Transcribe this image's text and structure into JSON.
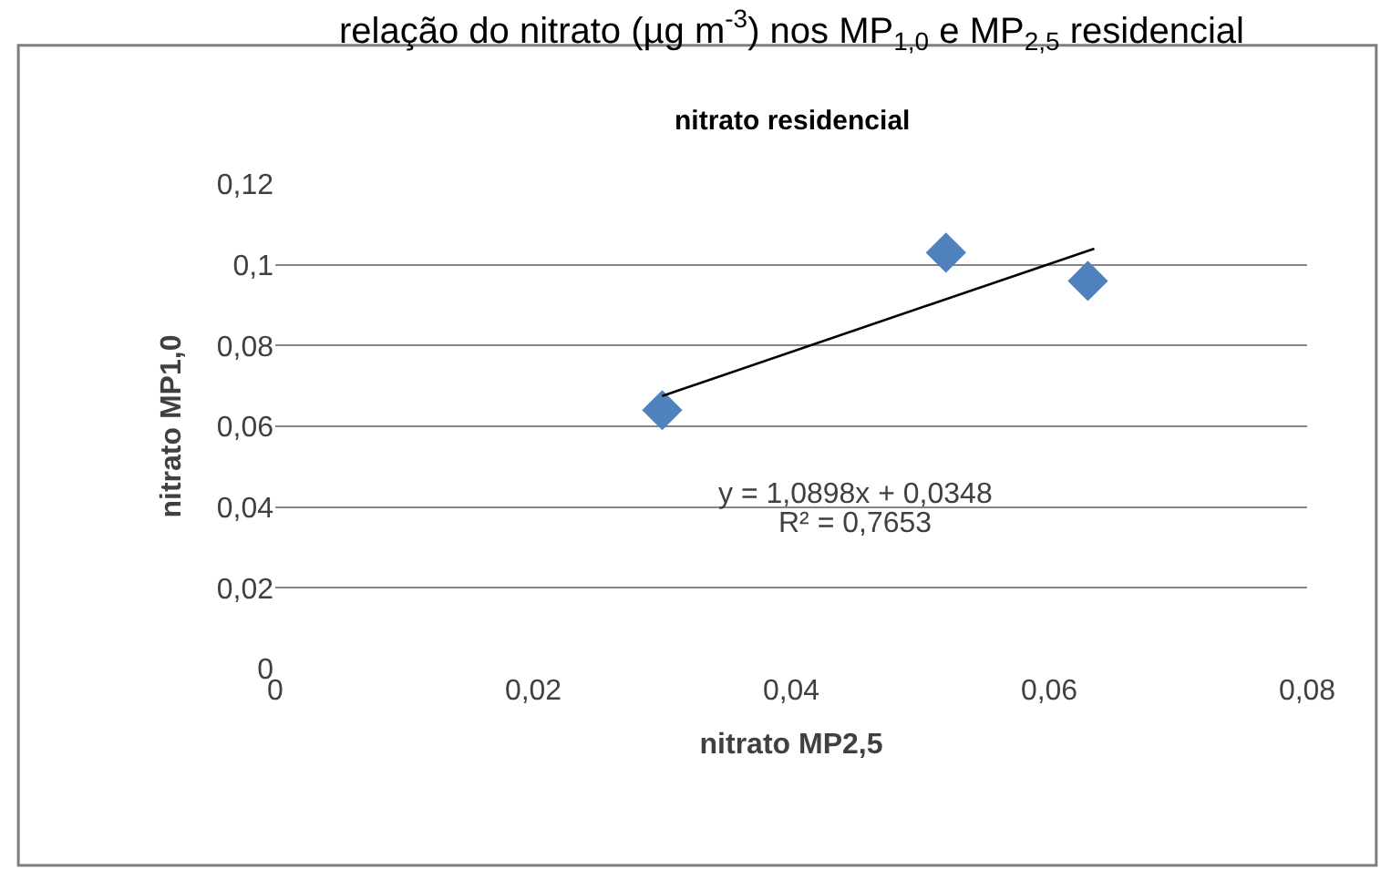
{
  "chart_data": {
    "type": "scatter",
    "title": "nitrato residencial",
    "subtitle": "relação do nitrato (µg m$^{-3}$) nos MP$_{1,0}$ e MP$_{2,5}$ residencial",
    "xlabel": "nitrato MP2,5",
    "ylabel": "nitrato MP1,0",
    "series": [
      {
        "color": "#4f81bd",
        "marker": "diamond",
        "x": [
          0.03,
          0.052,
          0.063
        ],
        "values": [
          0.064,
          0.103,
          0.096
        ]
      },
      {
        "type": "line",
        "color": "#000000",
        "marker": "none",
        "x": [
          0.03,
          0.0635
        ],
        "values": [
          0.0675,
          0.104
        ]
      }
    ],
    "annotations": [
      "y = 1,0898x + 0,0348",
      "R² = 0,7653"
    ],
    "xlim": [
      0,
      0.08
    ],
    "xticks": [
      {
        "value": 0,
        "label": "0"
      },
      {
        "value": 0.02,
        "label": "0,02"
      },
      {
        "value": 0.04,
        "label": "0,04"
      },
      {
        "value": 0.06,
        "label": "0,06"
      },
      {
        "value": 0.08,
        "label": "0,08"
      }
    ],
    "ylim": [
      0,
      0.12
    ],
    "yticks": [
      {
        "value": 0,
        "label": "0"
      },
      {
        "value": 0.02,
        "label": "0,02"
      },
      {
        "value": 0.04,
        "label": "0,04"
      },
      {
        "value": 0.06,
        "label": "0,06"
      },
      {
        "value": 0.08,
        "label": "0,08"
      },
      {
        "value": 0.1,
        "label": "0,1"
      },
      {
        "value": 0.12,
        "label": "0,12"
      }
    ],
    "grid": "y",
    "legend": false
  }
}
